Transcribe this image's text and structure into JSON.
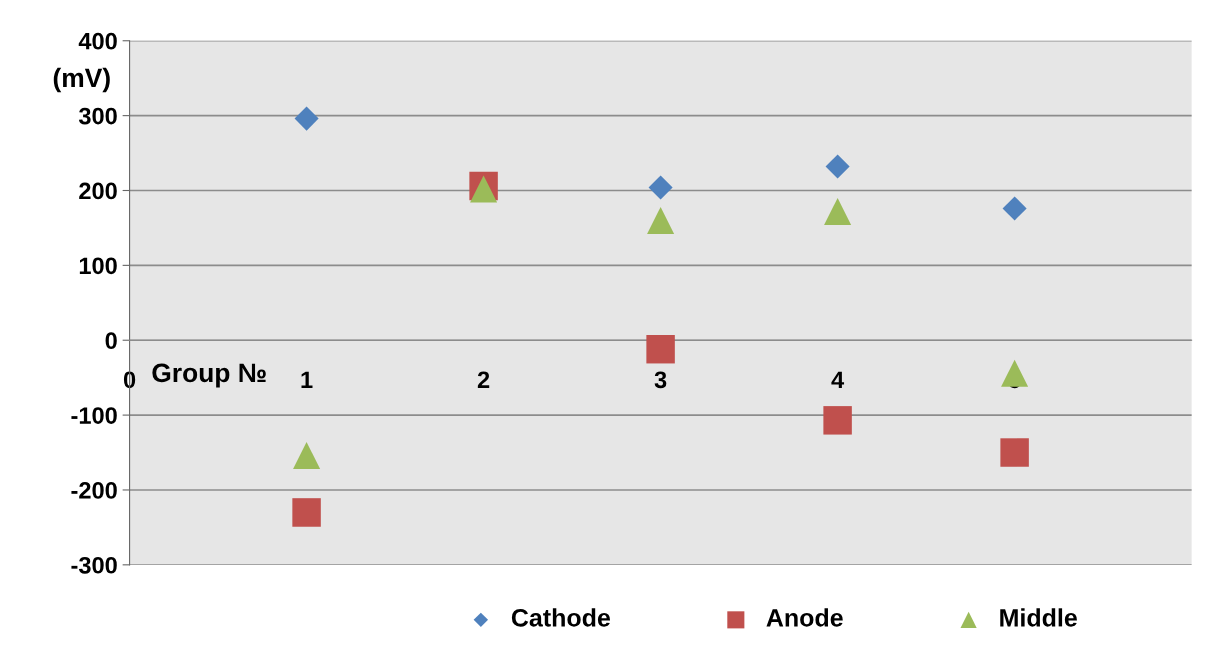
{
  "chart_data": {
    "type": "scatter",
    "xlabel": "Group №",
    "ylabel": "(mV)",
    "xlim": [
      0,
      6
    ],
    "xticks": [
      0,
      1,
      2,
      3,
      4,
      5
    ],
    "ylim": [
      -300,
      400
    ],
    "yticks": [
      -300,
      -200,
      -100,
      0,
      100,
      200,
      300,
      400
    ],
    "grid": "y",
    "legend": "bottom",
    "series": [
      {
        "name": "Cathode",
        "color": "#4f81bd",
        "marker": "diamond",
        "x": [
          1,
          2,
          3,
          4,
          5
        ],
        "values": [
          296,
          null,
          204,
          232,
          176
        ]
      },
      {
        "name": "Anode",
        "color": "#c0504d",
        "marker": "square",
        "x": [
          1,
          2,
          3,
          4,
          5
        ],
        "values": [
          -230,
          206,
          -12,
          -107,
          -150
        ]
      },
      {
        "name": "Middle",
        "color": "#9bbb59",
        "marker": "triangle",
        "x": [
          1,
          2,
          3,
          4,
          5
        ],
        "values": [
          -154,
          202,
          160,
          172,
          -44
        ]
      }
    ]
  }
}
